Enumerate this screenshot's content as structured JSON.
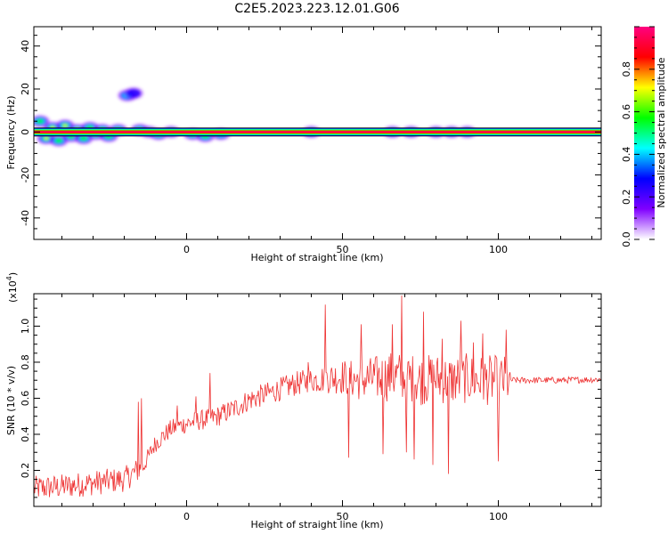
{
  "title": "C2E5.2023.223.12.01.G06",
  "chart_data": [
    {
      "type": "heatmap",
      "xlabel": "Height of straight line (km)",
      "ylabel": "Frequency (Hz)",
      "xlim": [
        -49,
        133
      ],
      "ylim": [
        -50,
        49
      ],
      "x_ticks": [
        0,
        50,
        100
      ],
      "y_ticks": [
        -40,
        -20,
        0,
        20,
        40
      ],
      "colorbar": {
        "label": "Normalized spectral amplitude",
        "range": [
          0,
          1
        ],
        "ticks": [
          "0.0",
          "0.2",
          "0.4",
          "0.6",
          "0.8"
        ],
        "colors": [
          "#ffffff",
          "#8000ff",
          "#0000ff",
          "#00ffff",
          "#00ff00",
          "#ffff00",
          "#ff0000",
          "#ff0080"
        ]
      },
      "main_line": {
        "frequency": 0,
        "x_range": [
          -49,
          133
        ]
      },
      "blobs": [
        {
          "x": -47,
          "f": 5,
          "amp": 0.45
        },
        {
          "x": -45,
          "f": -3,
          "amp": 0.55
        },
        {
          "x": -43,
          "f": 2,
          "amp": 0.5
        },
        {
          "x": -41,
          "f": -4,
          "amp": 0.45
        },
        {
          "x": -39,
          "f": 3,
          "amp": 0.5
        },
        {
          "x": -37,
          "f": -2,
          "amp": 0.45
        },
        {
          "x": -35,
          "f": 1,
          "amp": 0.5
        },
        {
          "x": -33,
          "f": -3,
          "amp": 0.4
        },
        {
          "x": -31,
          "f": 2,
          "amp": 0.45
        },
        {
          "x": -29,
          "f": -1,
          "amp": 0.4
        },
        {
          "x": -27,
          "f": 1,
          "amp": 0.4
        },
        {
          "x": -25,
          "f": -2,
          "amp": 0.35
        },
        {
          "x": -22,
          "f": 1,
          "amp": 0.4
        },
        {
          "x": -19,
          "f": 17,
          "amp": 0.2
        },
        {
          "x": -17,
          "f": 18,
          "amp": 0.15
        },
        {
          "x": -15,
          "f": 1,
          "amp": 0.45
        },
        {
          "x": -12,
          "f": 0,
          "amp": 0.35
        },
        {
          "x": -9,
          "f": -1,
          "amp": 0.35
        },
        {
          "x": -5,
          "f": 0,
          "amp": 0.35
        },
        {
          "x": 2,
          "f": -1,
          "amp": 0.35
        },
        {
          "x": 6,
          "f": -2,
          "amp": 0.4
        },
        {
          "x": 11,
          "f": -1,
          "amp": 0.3
        },
        {
          "x": 40,
          "f": 0,
          "amp": 0.3
        },
        {
          "x": 66,
          "f": 0,
          "amp": 0.3
        },
        {
          "x": 72,
          "f": 0,
          "amp": 0.25
        },
        {
          "x": 80,
          "f": 0,
          "amp": 0.25
        },
        {
          "x": 85,
          "f": 0,
          "amp": 0.25
        },
        {
          "x": 90,
          "f": 0,
          "amp": 0.3
        }
      ]
    },
    {
      "type": "line",
      "xlabel": "Height of straight line (km)",
      "ylabel": "SNR (10 * v/v)",
      "y_multiplier": "(x10",
      "y_exponent": "4",
      "y_multiplier_close": ")",
      "xlim": [
        -49,
        133
      ],
      "ylim": [
        0,
        11800
      ],
      "x_ticks": [
        0,
        50,
        100
      ],
      "y_ticks": [
        2000,
        4000,
        6000,
        8000,
        10000
      ],
      "y_tick_labels": [
        "0.2",
        "0.4",
        "0.6",
        "0.8",
        "1.0"
      ],
      "color": "#ee3333",
      "trend_x": [
        -49,
        -40,
        -30,
        -20,
        -14,
        -10,
        -5,
        0,
        5,
        10,
        15,
        20,
        25,
        30,
        35,
        40,
        45,
        50,
        55,
        60,
        65,
        70,
        75,
        80,
        85,
        90,
        95,
        100,
        103,
        110,
        120,
        133
      ],
      "trend_y": [
        1000,
        1100,
        1300,
        1500,
        2200,
        3500,
        4300,
        4600,
        4800,
        5000,
        5400,
        5900,
        6200,
        6500,
        6800,
        7000,
        7100,
        7200,
        7000,
        7100,
        7200,
        7200,
        7000,
        7100,
        7000,
        7100,
        7000,
        7000,
        7000,
        7000,
        7000,
        7050
      ],
      "noise_x": [
        -49,
        -14,
        -13,
        40,
        65,
        103,
        104,
        133
      ],
      "noise_amp": [
        700,
        700,
        500,
        700,
        1400,
        1400,
        180,
        180
      ],
      "spikes": [
        {
          "x": -15.5,
          "y": 5800
        },
        {
          "x": -14.5,
          "y": 6000
        },
        {
          "x": -3,
          "y": 5600
        },
        {
          "x": 3,
          "y": 6100
        },
        {
          "x": 7.5,
          "y": 7400
        },
        {
          "x": 39,
          "y": 8000
        },
        {
          "x": 44.5,
          "y": 11200
        },
        {
          "x": 52,
          "y": 2700
        },
        {
          "x": 56,
          "y": 10100
        },
        {
          "x": 63,
          "y": 2900
        },
        {
          "x": 66,
          "y": 10100
        },
        {
          "x": 69,
          "y": 11700
        },
        {
          "x": 70.5,
          "y": 3000
        },
        {
          "x": 73,
          "y": 2600
        },
        {
          "x": 76,
          "y": 10800
        },
        {
          "x": 79,
          "y": 2300
        },
        {
          "x": 82,
          "y": 9300
        },
        {
          "x": 84,
          "y": 1800
        },
        {
          "x": 88,
          "y": 10300
        },
        {
          "x": 92,
          "y": 9100
        },
        {
          "x": 95,
          "y": 9600
        },
        {
          "x": 100,
          "y": 2500
        },
        {
          "x": 102.5,
          "y": 9800
        }
      ]
    }
  ]
}
